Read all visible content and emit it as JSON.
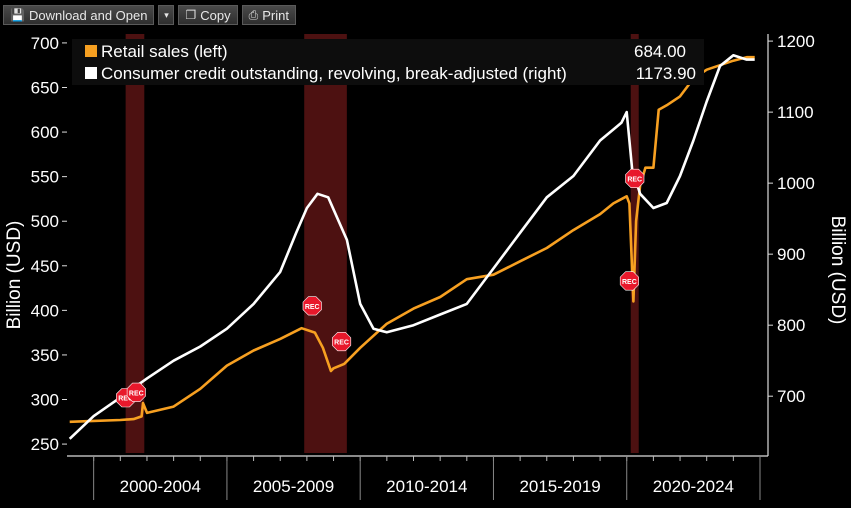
{
  "toolbar": {
    "download_label": "Download and Open",
    "copy_label": "Copy",
    "print_label": "Print",
    "icons": [
      "save-icon",
      "dropdown-arrow-icon",
      "copy-icon",
      "printer-icon"
    ]
  },
  "chart_data": {
    "type": "line",
    "left_axis": {
      "label": "Billion (USD)",
      "ylim": [
        240,
        710
      ],
      "ticks": [
        250,
        300,
        350,
        400,
        450,
        500,
        550,
        600,
        650,
        700
      ]
    },
    "right_axis": {
      "label": "Billion (USD)",
      "ylim": [
        620,
        1210
      ],
      "ticks": [
        700,
        800,
        900,
        1000,
        1100,
        1200
      ]
    },
    "x_axis": {
      "xlim": [
        1999.0,
        2025.3
      ],
      "tick_labels": [
        "2000-2004",
        "2005-2009",
        "2010-2014",
        "2015-2019",
        "2020-2024"
      ]
    },
    "legend": {
      "placement": "top-left",
      "items": [
        {
          "name": "Retail sales (left)",
          "value": "684.00",
          "color": "#f7a021"
        },
        {
          "name": "Consumer credit outstanding, revolving, break-adjusted (right)",
          "value": "1173.90",
          "color": "#ffffff"
        }
      ]
    },
    "recessions": [
      [
        2001.2,
        2001.9
      ],
      [
        2007.9,
        2009.5
      ],
      [
        2020.15,
        2020.45
      ]
    ],
    "rec_markers": [
      {
        "label": "REC",
        "x": 2001.2,
        "y_left": 302
      },
      {
        "label": "REC",
        "x": 2001.6,
        "y_left": 308
      },
      {
        "label": "REC",
        "x": 2008.2,
        "y_left": 405
      },
      {
        "label": "REC",
        "x": 2009.3,
        "y_left": 365
      },
      {
        "label": "REC",
        "x": 2020.3,
        "y_left": 548
      },
      {
        "label": "REC",
        "x": 2020.1,
        "y_left": 433
      }
    ],
    "series": [
      {
        "name": "Retail sales (left)",
        "axis": "left",
        "color": "#f7a021",
        "x": [
          1999.1,
          2000.0,
          2001.0,
          2001.5,
          2001.8,
          2001.85,
          2002.0,
          2003.0,
          2004.0,
          2005.0,
          2006.0,
          2007.0,
          2007.8,
          2008.3,
          2008.6,
          2008.9,
          2009.0,
          2009.4,
          2010.0,
          2011.0,
          2012.0,
          2013.0,
          2014.0,
          2015.0,
          2016.0,
          2017.0,
          2018.0,
          2019.0,
          2019.5,
          2020.0,
          2020.1,
          2020.25,
          2020.35,
          2020.5,
          2020.7,
          2021.0,
          2021.2,
          2021.5,
          2022.0,
          2022.5,
          2023.0,
          2023.5,
          2024.0,
          2024.5,
          2024.8
        ],
        "values": [
          275,
          276,
          277,
          278,
          281,
          296,
          285,
          292,
          312,
          338,
          355,
          368,
          380,
          375,
          358,
          332,
          335,
          340,
          358,
          385,
          402,
          415,
          435,
          440,
          455,
          470,
          490,
          508,
          520,
          528,
          520,
          410,
          500,
          540,
          560,
          560,
          625,
          630,
          640,
          660,
          670,
          675,
          680,
          684,
          684
        ]
      },
      {
        "name": "Consumer credit outstanding, revolving, break-adjusted (right)",
        "axis": "right",
        "color": "#ffffff",
        "x": [
          1999.1,
          2000.0,
          2001.0,
          2002.0,
          2003.0,
          2004.0,
          2005.0,
          2006.0,
          2007.0,
          2007.6,
          2008.0,
          2008.4,
          2008.8,
          2009.5,
          2010.0,
          2010.5,
          2011.0,
          2012.0,
          2013.0,
          2014.0,
          2015.0,
          2016.0,
          2017.0,
          2018.0,
          2019.0,
          2019.8,
          2020.0,
          2020.2,
          2020.5,
          2021.0,
          2021.5,
          2022.0,
          2022.5,
          2023.0,
          2023.5,
          2024.0,
          2024.5,
          2024.8
        ],
        "values": [
          640,
          672,
          698,
          725,
          750,
          770,
          795,
          830,
          875,
          930,
          965,
          985,
          980,
          920,
          830,
          795,
          790,
          800,
          815,
          830,
          880,
          930,
          980,
          1010,
          1060,
          1085,
          1100,
          1020,
          985,
          965,
          972,
          1010,
          1060,
          1115,
          1165,
          1180,
          1174,
          1174
        ]
      }
    ]
  }
}
